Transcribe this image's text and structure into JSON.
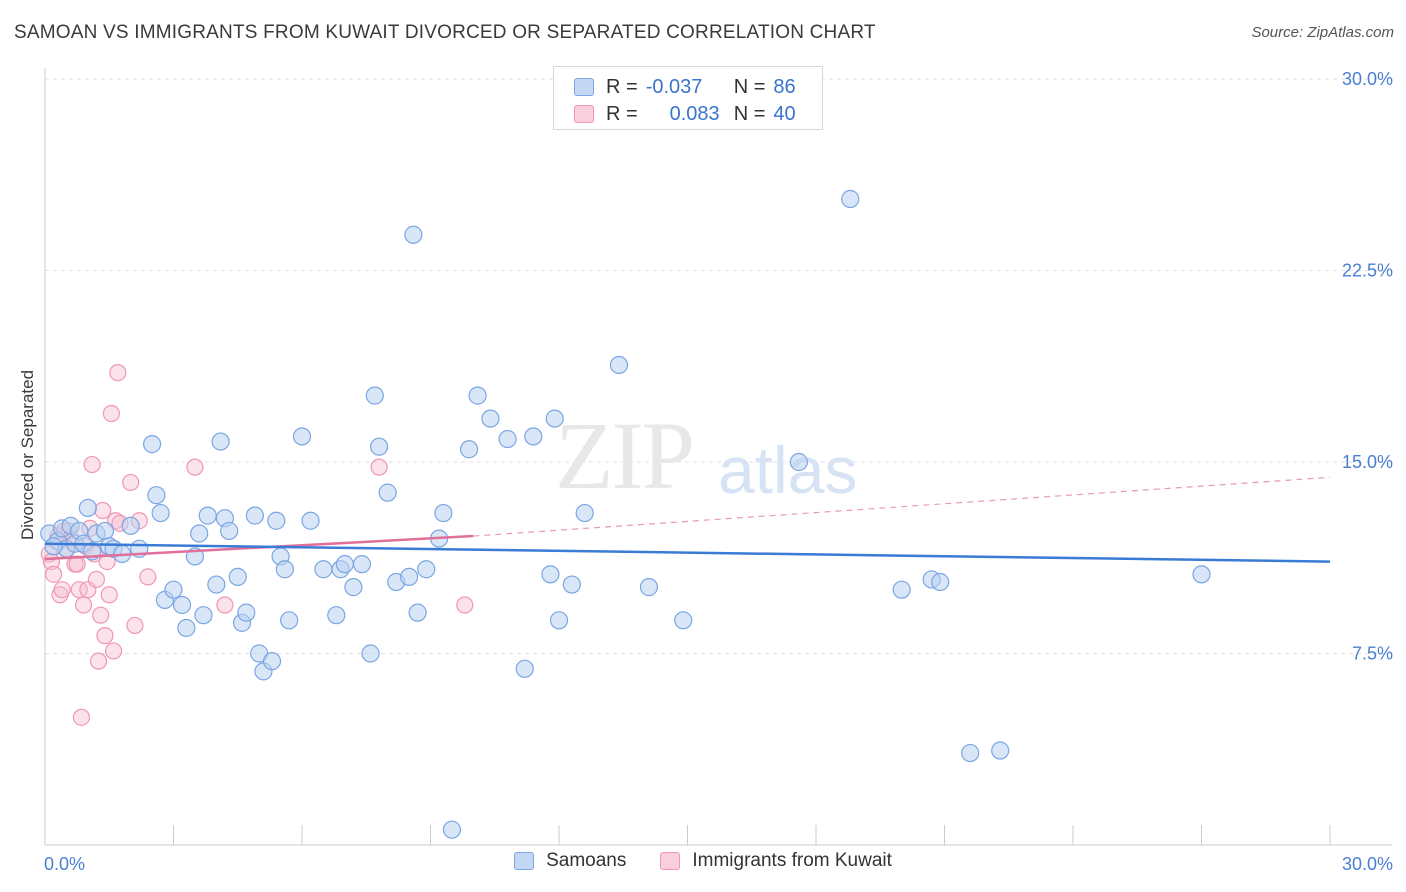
{
  "title": "SAMOAN VS IMMIGRANTS FROM KUWAIT DIVORCED OR SEPARATED CORRELATION CHART",
  "source": "Source: ZipAtlas.com",
  "watermark": {
    "zip": "ZIP",
    "atlas": "atlas"
  },
  "legend_top": {
    "rows": [
      {
        "r_label": "R =",
        "r_value": "-0.037",
        "n_label": "N =",
        "n_value": "86"
      },
      {
        "r_label": "R =",
        "r_value": "0.083",
        "n_label": "N =",
        "n_value": "40"
      }
    ]
  },
  "chart_data": {
    "type": "scatter",
    "title": "SAMOAN VS IMMIGRANTS FROM KUWAIT DIVORCED OR SEPARATED CORRELATION CHART",
    "xlabel": "",
    "ylabel": "Divorced or Separated",
    "xlim": [
      0,
      30
    ],
    "ylim": [
      0,
      30
    ],
    "x_tick_labels": [
      "0.0%",
      "30.0%"
    ],
    "y_ticks": [
      7.5,
      15.0,
      22.5,
      30.0
    ],
    "y_tick_labels": [
      "7.5%",
      "15.0%",
      "22.5%",
      "30.0%"
    ],
    "grid": true,
    "colors": {
      "samoans": "#7aa6e3",
      "kuwait": "#f096b6",
      "samoans_line": "#3a7bd5",
      "kuwait_line": "#e0709a"
    },
    "series": [
      {
        "name": "Samoans",
        "r": -0.037,
        "n": 86,
        "trend": {
          "x": [
            0,
            30
          ],
          "y": [
            11.8,
            11.1
          ]
        },
        "points": [
          [
            0.1,
            12.2
          ],
          [
            0.3,
            11.9
          ],
          [
            0.4,
            12.4
          ],
          [
            0.5,
            11.6
          ],
          [
            0.6,
            12.5
          ],
          [
            0.7,
            11.8
          ],
          [
            0.8,
            12.3
          ],
          [
            0.9,
            11.8
          ],
          [
            1.0,
            13.2
          ],
          [
            1.1,
            11.5
          ],
          [
            1.2,
            12.2
          ],
          [
            1.4,
            12.3
          ],
          [
            1.5,
            11.7
          ],
          [
            1.6,
            11.6
          ],
          [
            1.8,
            11.4
          ],
          [
            2.0,
            12.5
          ],
          [
            2.2,
            11.6
          ],
          [
            2.5,
            15.7
          ],
          [
            2.6,
            13.7
          ],
          [
            2.7,
            13.0
          ],
          [
            2.8,
            9.6
          ],
          [
            3.0,
            10.0
          ],
          [
            3.2,
            9.4
          ],
          [
            3.3,
            8.5
          ],
          [
            3.5,
            11.3
          ],
          [
            3.6,
            12.2
          ],
          [
            3.7,
            9.0
          ],
          [
            3.8,
            12.9
          ],
          [
            4.0,
            10.2
          ],
          [
            4.1,
            15.8
          ],
          [
            4.2,
            12.8
          ],
          [
            4.3,
            12.3
          ],
          [
            4.5,
            10.5
          ],
          [
            4.6,
            8.7
          ],
          [
            4.7,
            9.1
          ],
          [
            4.9,
            12.9
          ],
          [
            5.0,
            7.5
          ],
          [
            5.1,
            6.8
          ],
          [
            5.3,
            7.2
          ],
          [
            5.4,
            12.7
          ],
          [
            5.5,
            11.3
          ],
          [
            5.6,
            10.8
          ],
          [
            5.7,
            8.8
          ],
          [
            6.0,
            16.0
          ],
          [
            6.2,
            12.7
          ],
          [
            6.5,
            10.8
          ],
          [
            6.8,
            9.0
          ],
          [
            6.9,
            10.8
          ],
          [
            7.0,
            11.0
          ],
          [
            7.2,
            10.1
          ],
          [
            7.4,
            11.0
          ],
          [
            7.6,
            7.5
          ],
          [
            7.7,
            17.6
          ],
          [
            7.8,
            15.6
          ],
          [
            8.0,
            13.8
          ],
          [
            8.2,
            10.3
          ],
          [
            8.5,
            10.5
          ],
          [
            8.6,
            23.9
          ],
          [
            8.7,
            9.1
          ],
          [
            8.9,
            10.8
          ],
          [
            9.2,
            12.0
          ],
          [
            9.3,
            13.0
          ],
          [
            9.5,
            0.6
          ],
          [
            9.9,
            15.5
          ],
          [
            10.1,
            17.6
          ],
          [
            10.4,
            16.7
          ],
          [
            10.8,
            15.9
          ],
          [
            11.2,
            6.9
          ],
          [
            11.4,
            16.0
          ],
          [
            11.8,
            10.6
          ],
          [
            11.9,
            16.7
          ],
          [
            12.0,
            8.8
          ],
          [
            12.3,
            10.2
          ],
          [
            12.6,
            13.0
          ],
          [
            13.4,
            18.8
          ],
          [
            14.1,
            10.1
          ],
          [
            14.9,
            8.8
          ],
          [
            17.6,
            15.0
          ],
          [
            18.8,
            25.3
          ],
          [
            20.0,
            10.0
          ],
          [
            20.7,
            10.4
          ],
          [
            20.9,
            10.3
          ],
          [
            21.6,
            3.6
          ],
          [
            22.3,
            3.7
          ],
          [
            27.0,
            10.6
          ],
          [
            0.2,
            11.7
          ]
        ]
      },
      {
        "name": "Immigrants from Kuwait",
        "r": 0.083,
        "n": 40,
        "trend": {
          "x": [
            0,
            10
          ],
          "y": [
            11.2,
            12.1
          ]
        },
        "trend_extended": {
          "x": [
            10,
            30
          ],
          "y": [
            12.1,
            14.4
          ]
        },
        "points": [
          [
            0.1,
            11.4
          ],
          [
            0.15,
            11.1
          ],
          [
            0.2,
            10.6
          ],
          [
            0.3,
            12.1
          ],
          [
            0.35,
            9.8
          ],
          [
            0.4,
            10.0
          ],
          [
            0.45,
            12.3
          ],
          [
            0.5,
            11.6
          ],
          [
            0.55,
            12.3
          ],
          [
            0.6,
            12.0
          ],
          [
            0.7,
            11.0
          ],
          [
            0.75,
            11.0
          ],
          [
            0.8,
            10.0
          ],
          [
            0.85,
            5.0
          ],
          [
            0.9,
            9.4
          ],
          [
            0.95,
            11.7
          ],
          [
            1.0,
            10.0
          ],
          [
            1.05,
            12.4
          ],
          [
            1.1,
            14.9
          ],
          [
            1.15,
            11.4
          ],
          [
            1.2,
            10.4
          ],
          [
            1.25,
            7.2
          ],
          [
            1.3,
            9.0
          ],
          [
            1.35,
            13.1
          ],
          [
            1.4,
            8.2
          ],
          [
            1.45,
            11.1
          ],
          [
            1.5,
            9.8
          ],
          [
            1.55,
            16.9
          ],
          [
            1.6,
            7.6
          ],
          [
            1.65,
            12.7
          ],
          [
            1.7,
            18.5
          ],
          [
            1.75,
            12.6
          ],
          [
            2.0,
            14.2
          ],
          [
            2.1,
            8.6
          ],
          [
            2.2,
            12.7
          ],
          [
            2.4,
            10.5
          ],
          [
            3.5,
            14.8
          ],
          [
            4.2,
            9.4
          ],
          [
            7.8,
            14.8
          ],
          [
            9.8,
            9.4
          ]
        ]
      }
    ]
  },
  "bottom_legend": [
    "Samoans",
    "Immigrants from Kuwait"
  ]
}
